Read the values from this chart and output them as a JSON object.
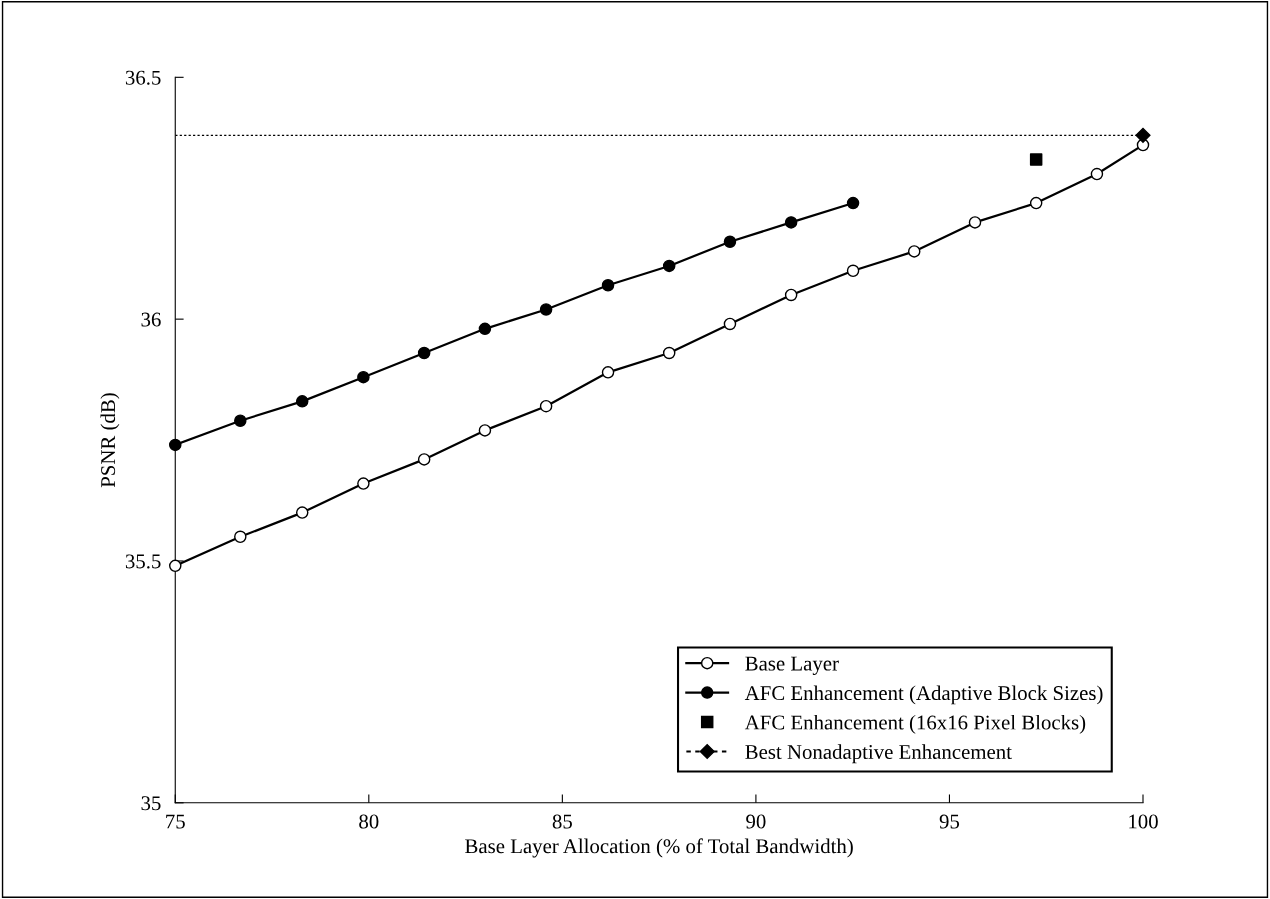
{
  "chart_data": {
    "type": "line",
    "xlabel": "Base Layer Allocation (% of Total Bandwidth)",
    "ylabel": "PSNR (dB)",
    "xlim": [
      75,
      100
    ],
    "xticks": [
      75,
      80,
      85,
      90,
      95,
      100
    ],
    "ylim": [
      35,
      36.5
    ],
    "yticks": [
      35,
      35.5,
      36,
      36.5
    ],
    "x": [
      75,
      76.68,
      78.28,
      79.86,
      81.43,
      83.0,
      84.58,
      86.18,
      87.76,
      89.33,
      90.91,
      92.51,
      94.09,
      95.66,
      97.24,
      98.81,
      100
    ],
    "grid": false,
    "legend": "bottom right",
    "ref_lines": [
      {
        "axis": "y",
        "value": 36.38,
        "line_style": "dotted",
        "color": "#000000"
      }
    ],
    "series": [
      {
        "name": "Base Layer",
        "color": "#000000",
        "marker": "circle",
        "line_style": "solid",
        "values": [
          35.49,
          35.55,
          35.6,
          35.66,
          35.71,
          35.77,
          35.82,
          35.89,
          35.93,
          35.99,
          36.05,
          36.1,
          36.14,
          36.2,
          36.24,
          36.3,
          36.36
        ]
      },
      {
        "name": "AFC Enhancement (Adaptive Block Sizes)",
        "color": "#000000",
        "marker": "circle",
        "line_style": "solid",
        "x": [
          75,
          76.68,
          78.28,
          79.86,
          81.43,
          83.0,
          84.58,
          86.18,
          87.76,
          89.33,
          90.91,
          92.51
        ],
        "values": [
          35.74,
          35.79,
          35.83,
          35.88,
          35.93,
          35.98,
          36.02,
          36.07,
          36.11,
          36.16,
          36.2,
          36.24
        ]
      },
      {
        "name": "AFC Enhancement (16x16 Pixel Blocks)",
        "type": "scatter",
        "color": "#000000",
        "marker": "square",
        "x": [
          97.24
        ],
        "values": [
          36.33
        ]
      },
      {
        "name": "Best Nonadaptive Enhancement",
        "color": "#000000",
        "marker": "diamond",
        "line_style": "dotted",
        "x": [
          100
        ],
        "values": [
          36.38
        ]
      }
    ]
  }
}
